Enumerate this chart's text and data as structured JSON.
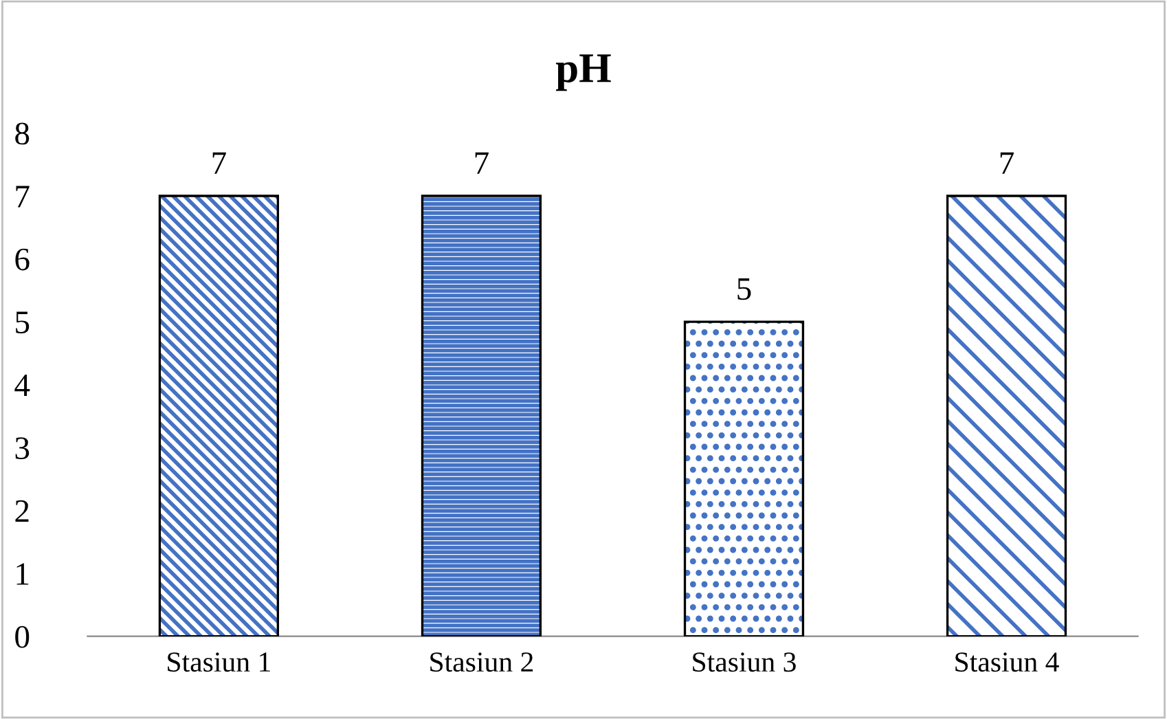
{
  "chart_data": {
    "type": "bar",
    "title": "pH",
    "categories": [
      "Stasiun 1",
      "Stasiun 2",
      "Stasiun 3",
      "Stasiun 4"
    ],
    "values": [
      7,
      7,
      5,
      7
    ],
    "colors": [
      "#4472c4",
      "#4472c4",
      "#4472c4",
      "#4472c4"
    ],
    "ylim": [
      0,
      8
    ],
    "yticks": [
      0,
      1,
      2,
      3,
      4,
      5,
      6,
      7,
      8
    ],
    "data_labels": true,
    "grid": false,
    "legend": false
  }
}
